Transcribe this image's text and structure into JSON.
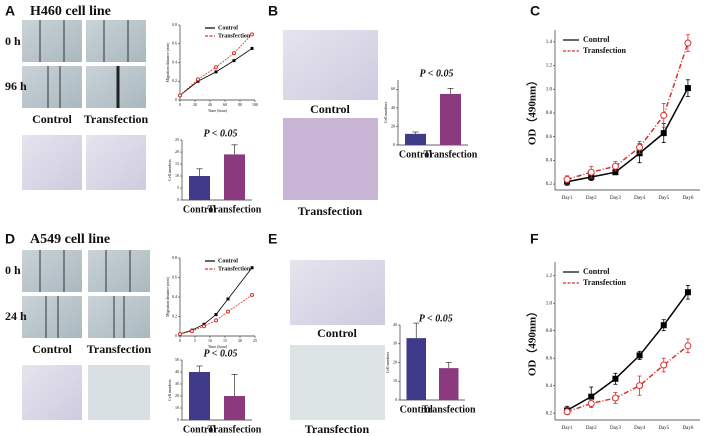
{
  "panels": [
    {
      "label": "A",
      "title": "H460 cell line",
      "rows": [
        "0 h",
        "96 h"
      ],
      "cols": [
        "Control",
        "Transfection"
      ]
    },
    {
      "label": "B",
      "captions": [
        "Control",
        "Transfection"
      ]
    },
    {
      "label": "C"
    },
    {
      "label": "D",
      "title": "A549 cell line",
      "rows": [
        "0 h",
        "24 h"
      ],
      "cols": [
        "Control",
        "Transfection"
      ]
    },
    {
      "label": "E",
      "captions": [
        "Control",
        "Transfection"
      ]
    },
    {
      "label": "F"
    }
  ],
  "chart_data": [
    {
      "type": "line",
      "x": [
        0,
        24,
        48,
        72,
        96
      ],
      "xlim": [
        0,
        100
      ],
      "xticks": [
        0,
        20,
        40,
        60,
        80,
        100
      ],
      "ylim": [
        0,
        0.8
      ],
      "yticks": [
        0,
        0.2,
        0.4,
        0.6,
        0.8
      ],
      "xlabel": "Time (hour)",
      "ylabel": "Migration distance (mm)",
      "series": [
        {
          "name": "Control",
          "color": "#000000",
          "marker": "square",
          "dash": false,
          "values": [
            0.05,
            0.2,
            0.3,
            0.42,
            0.55
          ]
        },
        {
          "name": "Transfection",
          "color": "#d9312b",
          "marker": "circle",
          "dash": true,
          "values": [
            0.05,
            0.22,
            0.35,
            0.5,
            0.7
          ]
        }
      ]
    },
    {
      "type": "bar",
      "categories": [
        "Control",
        "Transfection"
      ],
      "values": [
        10,
        19
      ],
      "errors": [
        3,
        4
      ],
      "colors": [
        "#3f3a8a",
        "#8b3a7e"
      ],
      "ylim": [
        0,
        25
      ],
      "yticks": [
        0,
        5,
        10,
        15,
        20,
        25
      ],
      "ylabel": "Cell numbers",
      "annotation": "P < 0.05"
    },
    {
      "type": "bar",
      "categories": [
        "Control",
        "Transfection"
      ],
      "values": [
        12,
        55
      ],
      "errors": [
        2,
        6
      ],
      "colors": [
        "#3f3a8a",
        "#8b3a7e"
      ],
      "ylim": [
        0,
        70
      ],
      "yticks": [
        0,
        20,
        40,
        60
      ],
      "ylabel": "Cell numbers",
      "annotation": "P < 0.05"
    },
    {
      "type": "line",
      "categories": [
        "Day1",
        "Day2",
        "Day3",
        "Day4",
        "Day5",
        "Day6"
      ],
      "ylim": [
        0.15,
        1.5
      ],
      "yticks": [
        0.2,
        0.4,
        0.6,
        0.8,
        {
          "value": 1,
          "label": "1.0"
        },
        1.2,
        1.4
      ],
      "ylabel": "OD（490nm）",
      "series": [
        {
          "name": "Control",
          "color": "#000000",
          "marker": "square",
          "dash": false,
          "values": [
            0.22,
            0.26,
            0.3,
            0.46,
            0.63,
            1.01
          ],
          "errors": [
            0.03,
            0.03,
            0.02,
            0.08,
            0.08,
            0.07
          ]
        },
        {
          "name": "Transfection",
          "color": "#d9312b",
          "marker": "circle",
          "dash": true,
          "values": [
            0.24,
            0.3,
            0.35,
            0.51,
            0.78,
            1.39
          ],
          "errors": [
            0.03,
            0.05,
            0.04,
            0.05,
            0.1,
            0.07
          ]
        }
      ]
    },
    {
      "type": "line",
      "x": [
        0,
        4,
        8,
        12,
        16,
        24
      ],
      "xlim": [
        0,
        25
      ],
      "xticks": [
        0,
        5,
        10,
        15,
        20,
        25
      ],
      "ylim": [
        0,
        0.8
      ],
      "yticks": [
        0,
        0.2,
        0.4,
        0.6,
        0.8
      ],
      "xlabel": "Time (hour)",
      "ylabel": "Migration distance (mm)",
      "series": [
        {
          "name": "Control",
          "color": "#000000",
          "marker": "square",
          "dash": false,
          "values": [
            0.02,
            0.06,
            0.12,
            0.22,
            0.38,
            0.7
          ]
        },
        {
          "name": "Transfection",
          "color": "#d9312b",
          "marker": "circle",
          "dash": true,
          "values": [
            0.02,
            0.05,
            0.1,
            0.16,
            0.25,
            0.42
          ]
        }
      ]
    },
    {
      "type": "bar",
      "categories": [
        "Control",
        "Transfection"
      ],
      "values": [
        40,
        20
      ],
      "errors": [
        5,
        18
      ],
      "colors": [
        "#3f3a8a",
        "#8b3a7e"
      ],
      "ylim": [
        0,
        50
      ],
      "yticks": [
        0,
        10,
        20,
        30,
        40,
        50
      ],
      "ylabel": "Cell numbers",
      "annotation": "P < 0.05"
    },
    {
      "type": "bar",
      "categories": [
        "Control",
        "Transfection"
      ],
      "values": [
        33,
        17
      ],
      "errors": [
        8,
        3
      ],
      "colors": [
        "#3f3a8a",
        "#8b3a7e"
      ],
      "ylim": [
        0,
        40
      ],
      "yticks": [
        0,
        10,
        20,
        30,
        40
      ],
      "ylabel": "Cell numbers",
      "annotation": "P < 0.05"
    },
    {
      "type": "line",
      "categories": [
        "Day1",
        "Day2",
        "Day3",
        "Day4",
        "Day5",
        "Day6"
      ],
      "ylim": [
        0.15,
        1.3
      ],
      "yticks": [
        0.2,
        0.4,
        0.6,
        0.8,
        {
          "value": 1,
          "label": "1.0"
        },
        1.2
      ],
      "ylabel": "OD（490nm）",
      "series": [
        {
          "name": "Control",
          "color": "#000000",
          "marker": "square",
          "dash": false,
          "values": [
            0.22,
            0.32,
            0.45,
            0.62,
            0.84,
            1.08
          ],
          "errors": [
            0.03,
            0.07,
            0.04,
            0.03,
            0.04,
            0.05
          ]
        },
        {
          "name": "Transfection",
          "color": "#d9312b",
          "marker": "circle",
          "dash": true,
          "values": [
            0.21,
            0.27,
            0.31,
            0.4,
            0.55,
            0.69
          ],
          "errors": [
            0.02,
            0.03,
            0.04,
            0.07,
            0.05,
            0.05
          ]
        }
      ]
    }
  ]
}
